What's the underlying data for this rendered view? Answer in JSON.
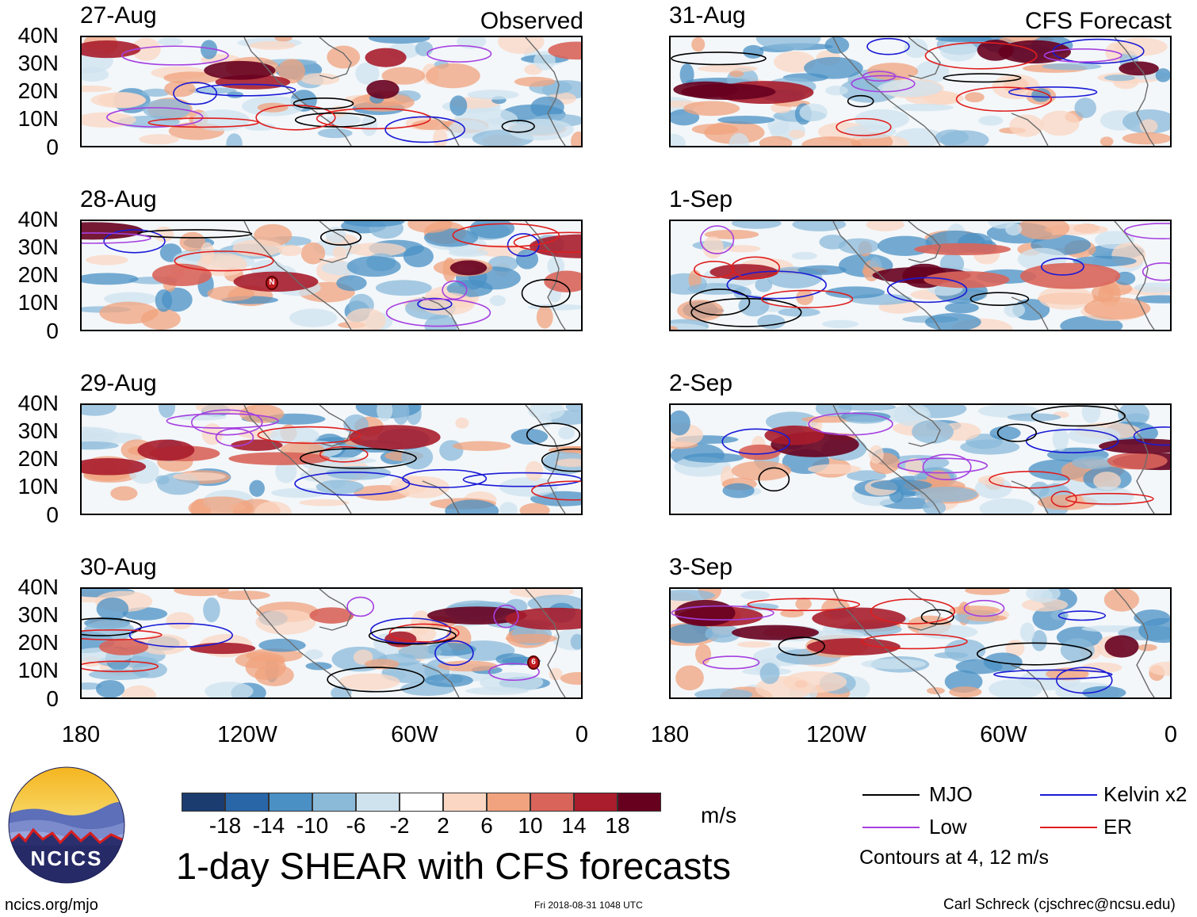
{
  "header": {
    "left": "Observed",
    "right": "CFS Forecast"
  },
  "latitude_labels": [
    "40N",
    "30N",
    "20N",
    "10N",
    "0"
  ],
  "longitude_labels": [
    "180",
    "120W",
    "60W",
    "0"
  ],
  "observed_panels": [
    {
      "date": "27-Aug"
    },
    {
      "date": "28-Aug"
    },
    {
      "date": "29-Aug"
    },
    {
      "date": "30-Aug"
    }
  ],
  "forecast_panels": [
    {
      "date": "31-Aug"
    },
    {
      "date": "1-Sep"
    },
    {
      "date": "2-Sep"
    },
    {
      "date": "3-Sep"
    }
  ],
  "tc_markers": [
    {
      "panel": "28-Aug",
      "symbol": "N"
    },
    {
      "panel": "30-Aug",
      "symbol": "6"
    }
  ],
  "colorbar": {
    "colors": [
      "#1b3c6e",
      "#2866a8",
      "#4a90c4",
      "#8bbad9",
      "#cfe3ef",
      "#ffffff",
      "#fbd7c3",
      "#f0a37e",
      "#d9645a",
      "#a91d2c",
      "#67001f"
    ],
    "labels": [
      "-18",
      "-14",
      "-10",
      "-6",
      "-2",
      "2",
      "6",
      "10",
      "14",
      "18"
    ],
    "unit": "m/s"
  },
  "legend": {
    "items": [
      {
        "label": "MJO",
        "color": "#000000"
      },
      {
        "label": "Kelvin x2",
        "color": "#1a1ad6"
      },
      {
        "label": "Low",
        "color": "#a63fe0"
      },
      {
        "label": "ER",
        "color": "#e01e1e"
      }
    ],
    "note": "Contours at 4, 12 m/s"
  },
  "title": "1-day SHEAR with CFS forecasts",
  "logo_text": "NCICS",
  "footer": {
    "url": "ncics.org/mjo",
    "timestamp": "Fri 2018-08-31 1048 UTC",
    "credit": "Carl Schreck (cjschrec@ncsu.edu)"
  }
}
